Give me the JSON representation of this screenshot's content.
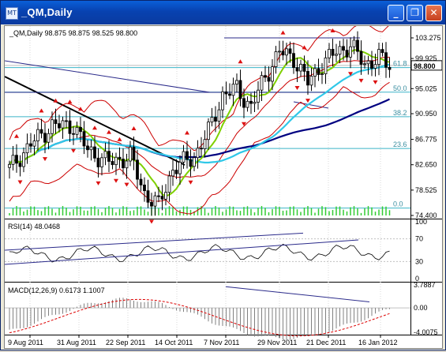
{
  "window": {
    "title": "_QM,Daily",
    "icon": "chart-window-icon",
    "buttons": [
      "minimize-icon",
      "restore-icon",
      "close-icon"
    ]
  },
  "main_chart": {
    "header": "_QM,Daily  98.875 98.875 98.525 98.800",
    "price_ticks": [
      "103.275",
      "99.925",
      "95.025",
      "90.950",
      "86.775",
      "82.650",
      "78.525",
      "74.400"
    ],
    "current_price": "98.800",
    "fib_levels": [
      "61.8",
      "50.0",
      "38.2",
      "23.6",
      "0.0"
    ],
    "colors": {
      "bg": "#ffffff",
      "grid": "#d9d9d9",
      "fib": "#3cb4c8",
      "bollinger": "#cc0000",
      "ma_fast": "#7fd000",
      "ma_mid": "#30c8e8",
      "ma_slow": "#000080",
      "candle": "#000000",
      "volume": "#33cc33"
    }
  },
  "rsi_panel": {
    "label": "RSI(14) 48.0468",
    "ticks": [
      "100",
      "70",
      "30",
      "0"
    ],
    "color": "#000000"
  },
  "macd_panel": {
    "label": "MACD(12,26,9) 0.6173 1.1007",
    "ticks": [
      "3.7887",
      "0.00",
      "-4.0075"
    ],
    "color": "#808080"
  },
  "time_axis": [
    "9 Aug 2011",
    "31 Aug 2011",
    "22 Sep 2011",
    "14 Oct 2011",
    "7 Nov 2011",
    "29 Nov 2011",
    "21 Dec 2011",
    "16 Jan 2012"
  ]
}
